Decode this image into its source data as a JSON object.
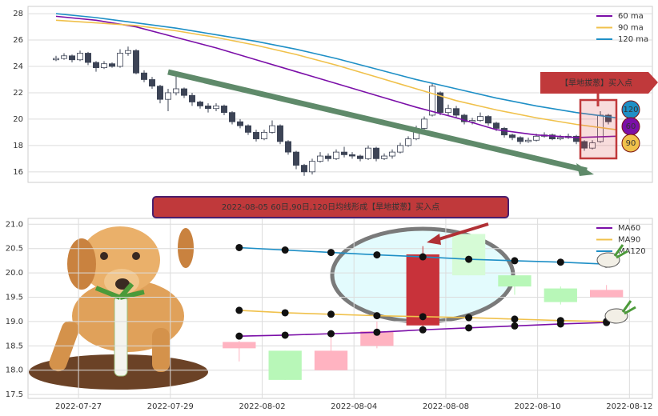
{
  "chart_data": [
    {
      "type": "candlestick",
      "ylim": [
        15.2,
        28.55
      ],
      "xlim": [
        -3.5,
        74.5
      ],
      "yticks": [
        16,
        18,
        20,
        22,
        24,
        26,
        28
      ],
      "grid": true,
      "up_color": "#ffffff",
      "down_color": "#3d4456",
      "edge_color": "#3d4456",
      "ohlc": [
        [
          24.5,
          24.6,
          24.8,
          24.4
        ],
        [
          24.6,
          24.8,
          25.0,
          24.5
        ],
        [
          24.8,
          24.5,
          24.9,
          24.3
        ],
        [
          24.5,
          25.0,
          25.2,
          24.4
        ],
        [
          25.0,
          24.3,
          25.1,
          24.1
        ],
        [
          24.3,
          23.9,
          24.4,
          23.6
        ],
        [
          23.9,
          24.2,
          24.4,
          23.8
        ],
        [
          24.2,
          24.0,
          24.3,
          23.9
        ],
        [
          24.0,
          25.0,
          25.3,
          23.9
        ],
        [
          25.0,
          25.2,
          25.5,
          24.8
        ],
        [
          25.2,
          23.5,
          25.3,
          23.4
        ],
        [
          23.5,
          23.0,
          23.7,
          22.8
        ],
        [
          23.0,
          22.5,
          23.2,
          22.3
        ],
        [
          22.5,
          21.5,
          22.6,
          21.2
        ],
        [
          21.5,
          22.0,
          22.3,
          20.6
        ],
        [
          22.0,
          22.3,
          23.3,
          21.8
        ],
        [
          22.3,
          21.8,
          22.4,
          21.6
        ],
        [
          21.8,
          21.3,
          22.0,
          21.0
        ],
        [
          21.3,
          21.0,
          21.4,
          20.8
        ],
        [
          21.0,
          20.8,
          21.2,
          20.5
        ],
        [
          20.8,
          21.0,
          21.2,
          20.6
        ],
        [
          21.0,
          20.5,
          21.1,
          20.3
        ],
        [
          20.5,
          19.8,
          20.6,
          19.6
        ],
        [
          19.8,
          19.5,
          20.0,
          19.3
        ],
        [
          19.5,
          19.0,
          19.6,
          18.8
        ],
        [
          19.0,
          18.5,
          19.2,
          18.3
        ],
        [
          18.5,
          19.0,
          19.2,
          18.4
        ],
        [
          19.0,
          19.5,
          19.9,
          18.9
        ],
        [
          19.5,
          18.3,
          19.6,
          18.1
        ],
        [
          18.3,
          17.5,
          18.4,
          17.3
        ],
        [
          17.5,
          16.5,
          17.6,
          16.2
        ],
        [
          16.5,
          16.0,
          16.6,
          15.7
        ],
        [
          16.0,
          16.8,
          17.0,
          15.8
        ],
        [
          16.8,
          17.2,
          17.5,
          16.7
        ],
        [
          17.2,
          17.0,
          17.4,
          16.8
        ],
        [
          17.0,
          17.5,
          17.7,
          16.9
        ],
        [
          17.5,
          17.3,
          17.9,
          17.1
        ],
        [
          17.3,
          17.2,
          17.5,
          17.0
        ],
        [
          17.2,
          17.0,
          17.3,
          16.8
        ],
        [
          17.0,
          17.8,
          18.0,
          16.9
        ],
        [
          17.8,
          17.0,
          17.9,
          16.8
        ],
        [
          17.0,
          17.2,
          17.4,
          16.9
        ],
        [
          17.2,
          17.5,
          17.7,
          17.0
        ],
        [
          17.5,
          18.0,
          18.2,
          17.4
        ],
        [
          18.0,
          18.5,
          18.7,
          17.9
        ],
        [
          18.5,
          19.3,
          19.5,
          18.4
        ],
        [
          19.3,
          20.0,
          20.2,
          19.1
        ],
        [
          20.3,
          22.5,
          22.7,
          20.2
        ],
        [
          22.0,
          20.5,
          22.1,
          20.3
        ],
        [
          20.5,
          20.8,
          21.1,
          20.3
        ],
        [
          20.8,
          20.3,
          21.0,
          20.1
        ],
        [
          20.3,
          19.8,
          20.4,
          19.6
        ],
        [
          19.8,
          19.9,
          20.1,
          19.6
        ],
        [
          19.9,
          20.2,
          20.5,
          19.8
        ],
        [
          20.2,
          19.7,
          20.3,
          19.5
        ],
        [
          19.7,
          19.3,
          19.8,
          19.1
        ],
        [
          19.3,
          18.8,
          19.4,
          18.6
        ],
        [
          18.8,
          18.6,
          18.9,
          18.4
        ],
        [
          18.6,
          18.3,
          18.7,
          18.1
        ],
        [
          18.3,
          18.4,
          18.6,
          18.2
        ],
        [
          18.4,
          18.7,
          18.9,
          18.3
        ],
        [
          18.7,
          18.8,
          19.0,
          18.6
        ],
        [
          18.8,
          18.5,
          18.9,
          18.4
        ],
        [
          18.5,
          18.6,
          18.8,
          18.4
        ],
        [
          18.6,
          18.7,
          18.9,
          18.5
        ],
        [
          18.7,
          18.3,
          18.8,
          18.1
        ],
        [
          18.3,
          17.8,
          18.4,
          17.6
        ],
        [
          17.8,
          18.2,
          18.4,
          17.7
        ],
        [
          18.3,
          20.3,
          20.6,
          18.2
        ],
        [
          20.3,
          19.8,
          20.4,
          19.6
        ]
      ],
      "series": [
        {
          "name": "60 ma",
          "color": "#7b0fa8",
          "x": [
            0,
            5,
            10,
            15,
            20,
            25,
            30,
            35,
            40,
            45,
            50,
            55,
            60,
            65,
            70
          ],
          "values": [
            27.8,
            27.5,
            27.0,
            26.2,
            25.4,
            24.5,
            23.6,
            22.7,
            21.8,
            20.9,
            20.1,
            19.2,
            18.8,
            18.6,
            18.7
          ]
        },
        {
          "name": "90 ma",
          "color": "#f0c14b",
          "x": [
            0,
            5,
            10,
            15,
            20,
            25,
            30,
            35,
            40,
            45,
            50,
            55,
            60,
            65,
            70
          ],
          "values": [
            27.5,
            27.3,
            27.1,
            26.7,
            26.2,
            25.6,
            24.9,
            24.1,
            23.2,
            22.3,
            21.4,
            20.7,
            20.1,
            19.6,
            19.2
          ]
        },
        {
          "name": "120 ma",
          "color": "#1e8fc6",
          "x": [
            0,
            5,
            10,
            15,
            20,
            25,
            30,
            35,
            40,
            45,
            50,
            55,
            60,
            65,
            70
          ],
          "values": [
            28.0,
            27.7,
            27.3,
            26.9,
            26.4,
            25.9,
            25.3,
            24.6,
            23.8,
            23.0,
            22.3,
            21.6,
            21.0,
            20.5,
            20.1
          ]
        }
      ],
      "legend": "upper right",
      "annotation": "【旱地拔葱】买入点",
      "badges": [
        {
          "label": "120",
          "color": "#1e8fc6"
        },
        {
          "label": "60",
          "color": "#7b0fa8"
        },
        {
          "label": "90",
          "color": "#f0c14b"
        }
      ]
    },
    {
      "type": "candlestick",
      "title": "2022-08-05 60日,90日,120日均线形成【旱地拔葱】买入点",
      "ylim": [
        17.42,
        21.12
      ],
      "xlim": [
        -1.1,
        12.5
      ],
      "yticks": [
        17.5,
        {
          "value": 18,
          "label": "18.0"
        },
        18.5,
        {
          "value": 19,
          "label": "19.0"
        },
        19.5,
        {
          "value": 20,
          "label": "20.0"
        },
        20.5,
        {
          "value": 21,
          "label": "21.0"
        }
      ],
      "xticks": [
        {
          "value": 0,
          "label": "2022-07-27"
        },
        {
          "value": 2,
          "label": "2022-07-29"
        },
        {
          "value": 4,
          "label": "2022-08-02"
        },
        {
          "value": 6,
          "label": "2022-08-04"
        },
        {
          "value": 8,
          "label": "2022-08-08"
        },
        {
          "value": 10,
          "label": "2022-08-10"
        },
        {
          "value": 12,
          "label": "2022-08-12"
        }
      ],
      "grid": true,
      "x": [
        3.5,
        4.5,
        5.5,
        6.5,
        7.5,
        8.5,
        9.5,
        10.5,
        11.5
      ],
      "ohlc": [
        [
          18.58,
          18.45,
          18.6,
          18.18
        ],
        [
          18.4,
          17.8,
          18.4,
          17.8
        ],
        [
          18.0,
          18.4,
          18.7,
          18.0
        ],
        [
          18.5,
          18.8,
          19.0,
          18.45
        ],
        [
          18.92,
          20.38,
          20.55,
          18.9
        ],
        [
          20.8,
          19.95,
          20.8,
          19.95
        ],
        [
          19.95,
          19.72,
          19.95,
          19.55
        ],
        [
          19.68,
          19.4,
          19.72,
          19.35
        ],
        [
          19.5,
          19.65,
          19.75,
          19.5
        ]
      ],
      "colors": [
        "#ffb3c1",
        "#b8f7b8",
        "#ffb3c1",
        "#ffb3c1",
        "#c8323a",
        "#d6fbd6",
        "#b8f7b8",
        "#b8f7b8",
        "#ffb3c1"
      ],
      "series": [
        {
          "name": "MA60",
          "color": "#7b0fa8",
          "values": [
            18.7,
            18.72,
            18.75,
            18.78,
            18.83,
            18.87,
            18.91,
            18.95,
            18.98
          ]
        },
        {
          "name": "MA90",
          "color": "#f0c14b",
          "values": [
            19.23,
            19.18,
            19.15,
            19.12,
            19.1,
            19.08,
            19.05,
            19.02,
            19.0
          ]
        },
        {
          "name": "MA120",
          "color": "#1e8fc6",
          "values": [
            20.52,
            20.47,
            20.42,
            20.37,
            20.33,
            20.28,
            20.25,
            20.22,
            20.18
          ]
        }
      ],
      "markers": true,
      "legend": "upper right"
    }
  ]
}
